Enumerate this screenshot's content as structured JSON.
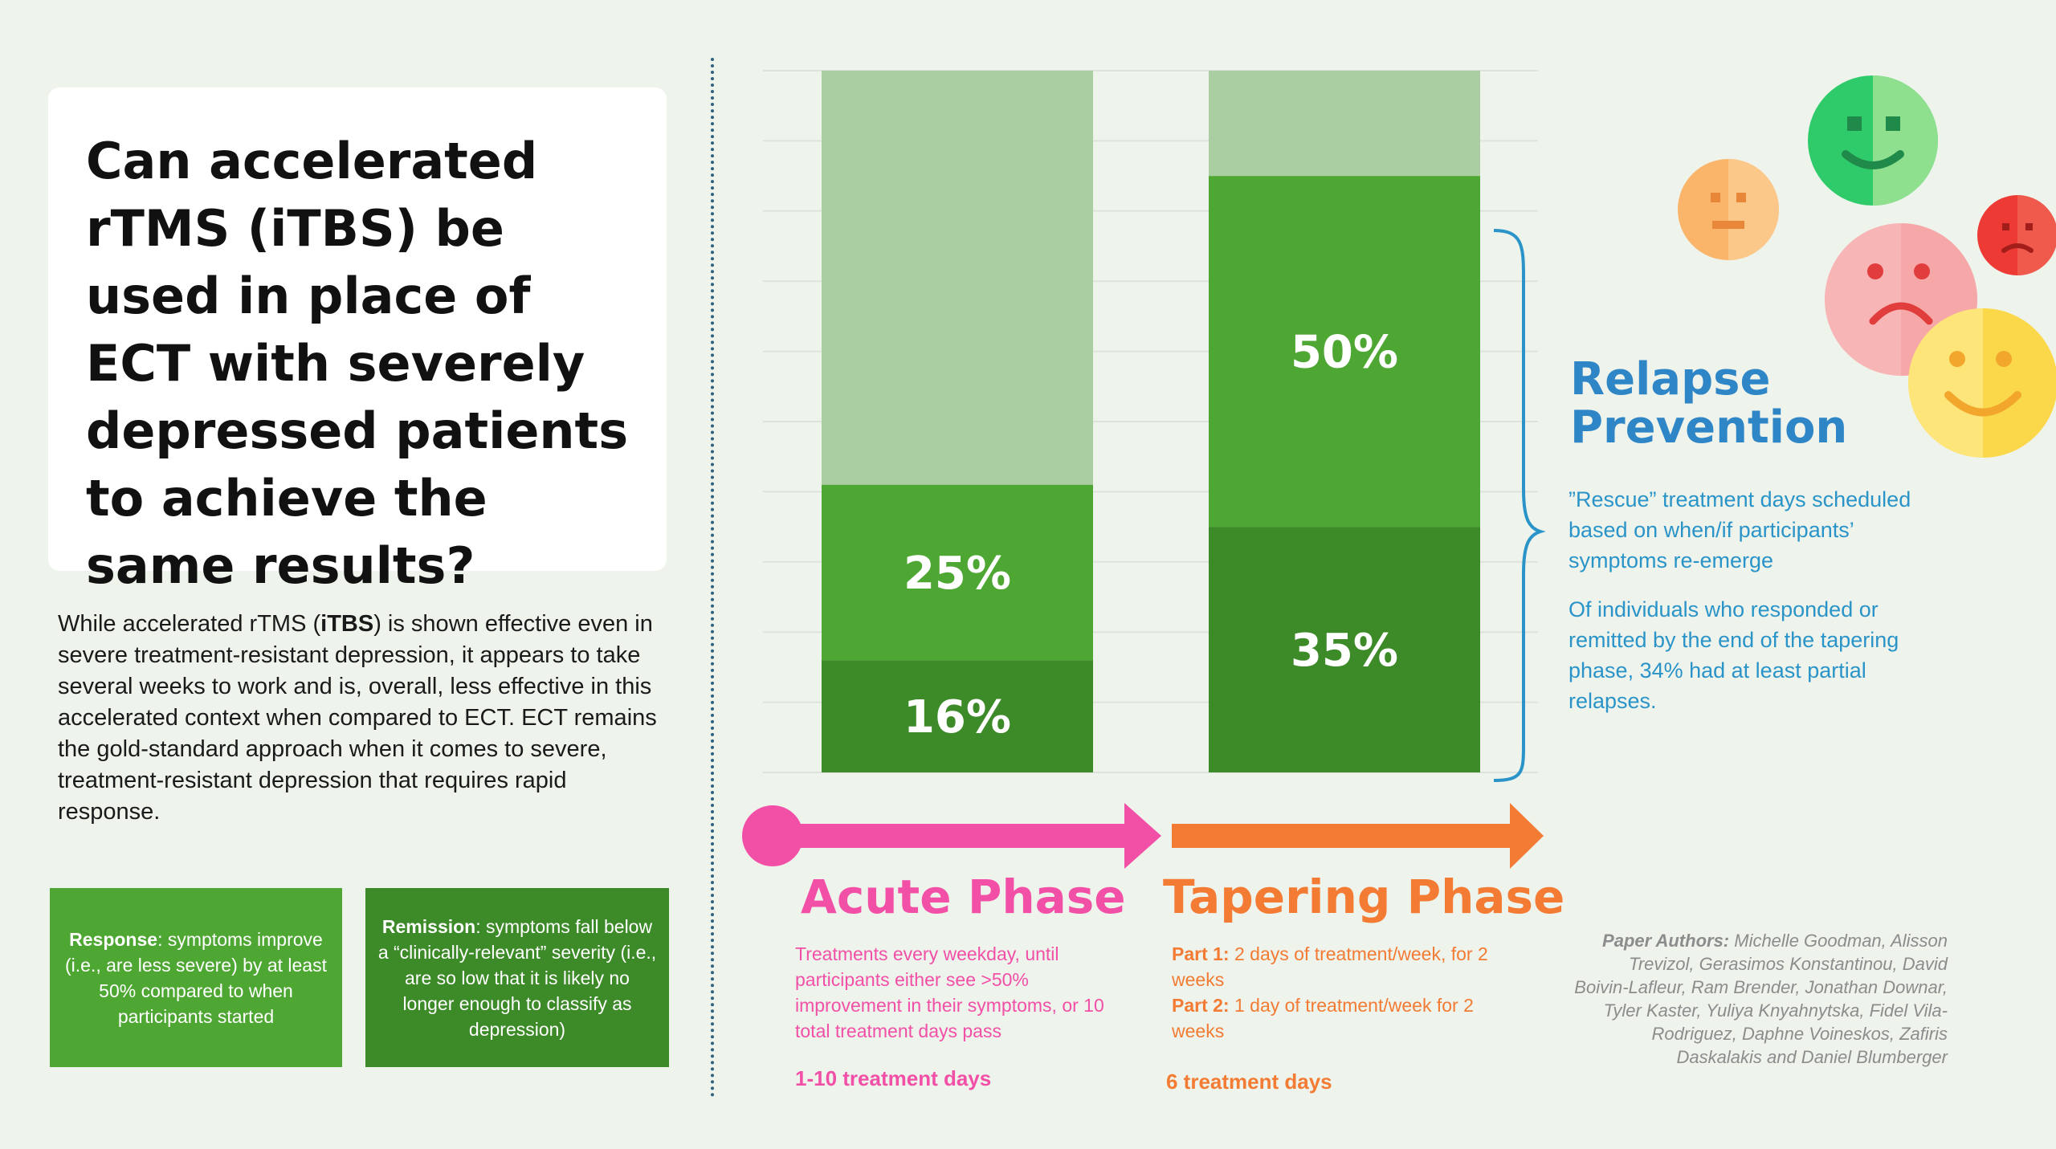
{
  "question": "Can accelerated rTMS (iTBS) be used in place of ECT with severely depressed patients to achieve the same results?",
  "intro": {
    "before": "While accelerated rTMS (",
    "bold": "iTBS",
    "after": ") is shown effective even in severe treatment-resistant depression, it appears to take several weeks to work and is, overall, less effective in this accelerated context when compared to ECT. ECT remains the gold-standard approach when it comes to severe, treatment-resistant depression that requires rapid response."
  },
  "definitions": {
    "response": {
      "term": "Response",
      "text": ": symptoms improve (i.e., are less severe) by at least 50% compared to when participants started"
    },
    "remission": {
      "term": "Remission",
      "text": ": symptoms fall below a “clinically-relevant” severity (i.e., are so low that it is likely no longer enough to classify as depression)"
    }
  },
  "chart_data": {
    "type": "bar",
    "stacked": true,
    "categories": [
      "Acute Phase",
      "Tapering Phase"
    ],
    "ylim": [
      0,
      100
    ],
    "grid": true,
    "series": [
      {
        "values": [
          16,
          35
        ],
        "labels": [
          "16%",
          "35%"
        ],
        "color": "#3d8a28"
      },
      {
        "values": [
          25,
          50
        ],
        "labels": [
          "25%",
          "50%"
        ],
        "color": "#4ea733"
      },
      {
        "values": [
          59,
          15
        ],
        "color": "#abcda2"
      }
    ]
  },
  "phases": {
    "acute": {
      "title": "Acute Phase",
      "description": "Treatments every weekday, until participants either see >50% improvement in their symptoms, or 10 total treatment days pass",
      "days": "1-10 treatment days",
      "color": "#f24fa7"
    },
    "tapering": {
      "title": "Tapering Phase",
      "part1_label": "Part 1:",
      "part1_text": " 2 days of treatment/week, for 2 weeks",
      "part2_label": "Part 2:",
      "part2_text": " 1 day of treatment/week for 2 weeks",
      "days": "6 treatment days",
      "color": "#f37b33"
    }
  },
  "relapse": {
    "title": "Relapse Prevention",
    "p1": "”Rescue” treatment days scheduled based on when/if participants’ symptoms re-emerge",
    "p2": "Of individuals who responded or remitted by the end of the tapering phase, 34% had at least partial relapses."
  },
  "authors": {
    "label": "Paper Authors:",
    "names": " Michelle Goodman, Alisson Trevizol, Gerasimos Konstantinou, David Boivin-Lafleur, Ram Brender, Jonathan Downar, Tyler Kaster, Yuliya Knyahnytska, Fidel Vila-Rodriguez, Daphne Voineskos,  Zafiris  Daskalakis and Daniel Blumberger"
  },
  "icons": [
    "neutral-face-icon",
    "happy-face-icon",
    "sad-face-icon",
    "frowning-face-icon",
    "smiling-face-icon"
  ]
}
